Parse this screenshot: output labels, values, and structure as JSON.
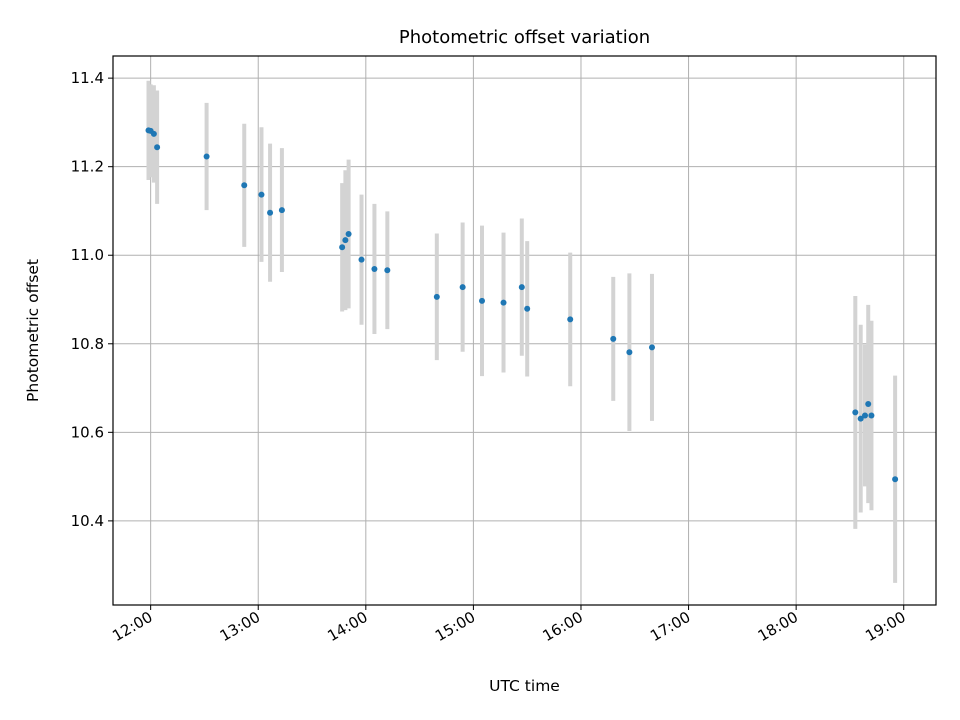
{
  "chart_data": {
    "type": "scatter",
    "title": "Photometric offset variation",
    "xlabel": "UTC time",
    "ylabel": "Photometric offset",
    "x_unit": "hours (UTC)",
    "xlim": [
      11.65,
      19.3
    ],
    "ylim": [
      10.21,
      11.45
    ],
    "grid": true,
    "legend": "none",
    "x_ticks": [
      {
        "value": 12,
        "label": "12:00"
      },
      {
        "value": 13,
        "label": "13:00"
      },
      {
        "value": 14,
        "label": "14:00"
      },
      {
        "value": 15,
        "label": "15:00"
      },
      {
        "value": 16,
        "label": "16:00"
      },
      {
        "value": 17,
        "label": "17:00"
      },
      {
        "value": 18,
        "label": "18:00"
      },
      {
        "value": 19,
        "label": "19:00"
      }
    ],
    "y_ticks": [
      {
        "value": 10.4,
        "label": "10.4"
      },
      {
        "value": 10.6,
        "label": "10.6"
      },
      {
        "value": 10.8,
        "label": "10.8"
      },
      {
        "value": 11.0,
        "label": "11.0"
      },
      {
        "value": 11.2,
        "label": "11.2"
      },
      {
        "value": 11.4,
        "label": "11.4"
      }
    ],
    "colors": {
      "point": "#1f77b4",
      "errorbar": "#d3d3d3",
      "grid": "#b0b0b0"
    },
    "points": [
      {
        "x": 11.98,
        "y": 11.282,
        "err": 0.112
      },
      {
        "x": 12.0,
        "y": 11.281,
        "err": 0.105
      },
      {
        "x": 12.03,
        "y": 11.274,
        "err": 0.11
      },
      {
        "x": 12.06,
        "y": 11.244,
        "err": 0.128
      },
      {
        "x": 12.52,
        "y": 11.223,
        "err": 0.121
      },
      {
        "x": 12.87,
        "y": 11.158,
        "err": 0.139
      },
      {
        "x": 13.03,
        "y": 11.137,
        "err": 0.152
      },
      {
        "x": 13.11,
        "y": 11.096,
        "err": 0.156
      },
      {
        "x": 13.22,
        "y": 11.102,
        "err": 0.14
      },
      {
        "x": 13.78,
        "y": 11.018,
        "err": 0.145
      },
      {
        "x": 13.81,
        "y": 11.034,
        "err": 0.158
      },
      {
        "x": 13.84,
        "y": 11.048,
        "err": 0.168
      },
      {
        "x": 13.96,
        "y": 10.99,
        "err": 0.147
      },
      {
        "x": 14.08,
        "y": 10.969,
        "err": 0.147
      },
      {
        "x": 14.2,
        "y": 10.966,
        "err": 0.133
      },
      {
        "x": 14.66,
        "y": 10.906,
        "err": 0.143
      },
      {
        "x": 14.9,
        "y": 10.928,
        "err": 0.146
      },
      {
        "x": 15.08,
        "y": 10.897,
        "err": 0.17
      },
      {
        "x": 15.28,
        "y": 10.893,
        "err": 0.158
      },
      {
        "x": 15.45,
        "y": 10.928,
        "err": 0.155
      },
      {
        "x": 15.5,
        "y": 10.879,
        "err": 0.153
      },
      {
        "x": 15.9,
        "y": 10.855,
        "err": 0.151
      },
      {
        "x": 16.3,
        "y": 10.811,
        "err": 0.14
      },
      {
        "x": 16.45,
        "y": 10.781,
        "err": 0.178
      },
      {
        "x": 16.66,
        "y": 10.792,
        "err": 0.166
      },
      {
        "x": 18.55,
        "y": 10.645,
        "err": 0.263
      },
      {
        "x": 18.6,
        "y": 10.631,
        "err": 0.212
      },
      {
        "x": 18.64,
        "y": 10.638,
        "err": 0.16
      },
      {
        "x": 18.67,
        "y": 10.664,
        "err": 0.224
      },
      {
        "x": 18.7,
        "y": 10.638,
        "err": 0.214
      },
      {
        "x": 18.92,
        "y": 10.494,
        "err": 0.234
      }
    ]
  }
}
